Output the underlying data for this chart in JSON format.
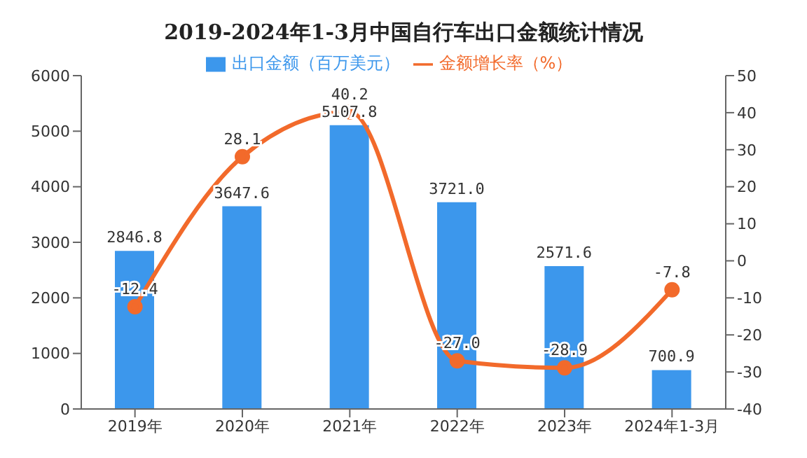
{
  "chart_data": {
    "type": "bar",
    "title": "2019-2024年1-3月中国自行车出口金额统计情况",
    "categories": [
      "2019年",
      "2020年",
      "2021年",
      "2022年",
      "2023年",
      "2024年1-3月"
    ],
    "series": [
      {
        "name": "出口金额（百万美元）",
        "color": "#3c97ec",
        "values": [
          2846.8,
          3647.6,
          5107.8,
          3721.0,
          2571.6,
          700.9
        ],
        "value_labels": [
          "2846.8",
          "3647.6",
          "5107.8",
          "3721.0",
          "2571.6",
          "700.9"
        ]
      },
      {
        "name": "金额增长率（%）",
        "type": "line",
        "axis": "y2",
        "color": "#f26a2b",
        "marker": "circle",
        "values": [
          -12.4,
          28.1,
          40.2,
          -27.0,
          -28.9,
          -7.8
        ],
        "value_labels": [
          "-12.4",
          "28.1",
          "40.2",
          "-27.0",
          "-28.9",
          "-7.8"
        ]
      }
    ],
    "ylim": [
      0,
      6000
    ],
    "yticks": [
      0,
      1000,
      2000,
      3000,
      4000,
      5000,
      6000
    ],
    "y2lim": [
      -40,
      50
    ],
    "y2ticks": [
      -40,
      -30,
      -20,
      -10,
      0,
      10,
      20,
      30,
      40,
      50
    ],
    "legend": "top"
  }
}
